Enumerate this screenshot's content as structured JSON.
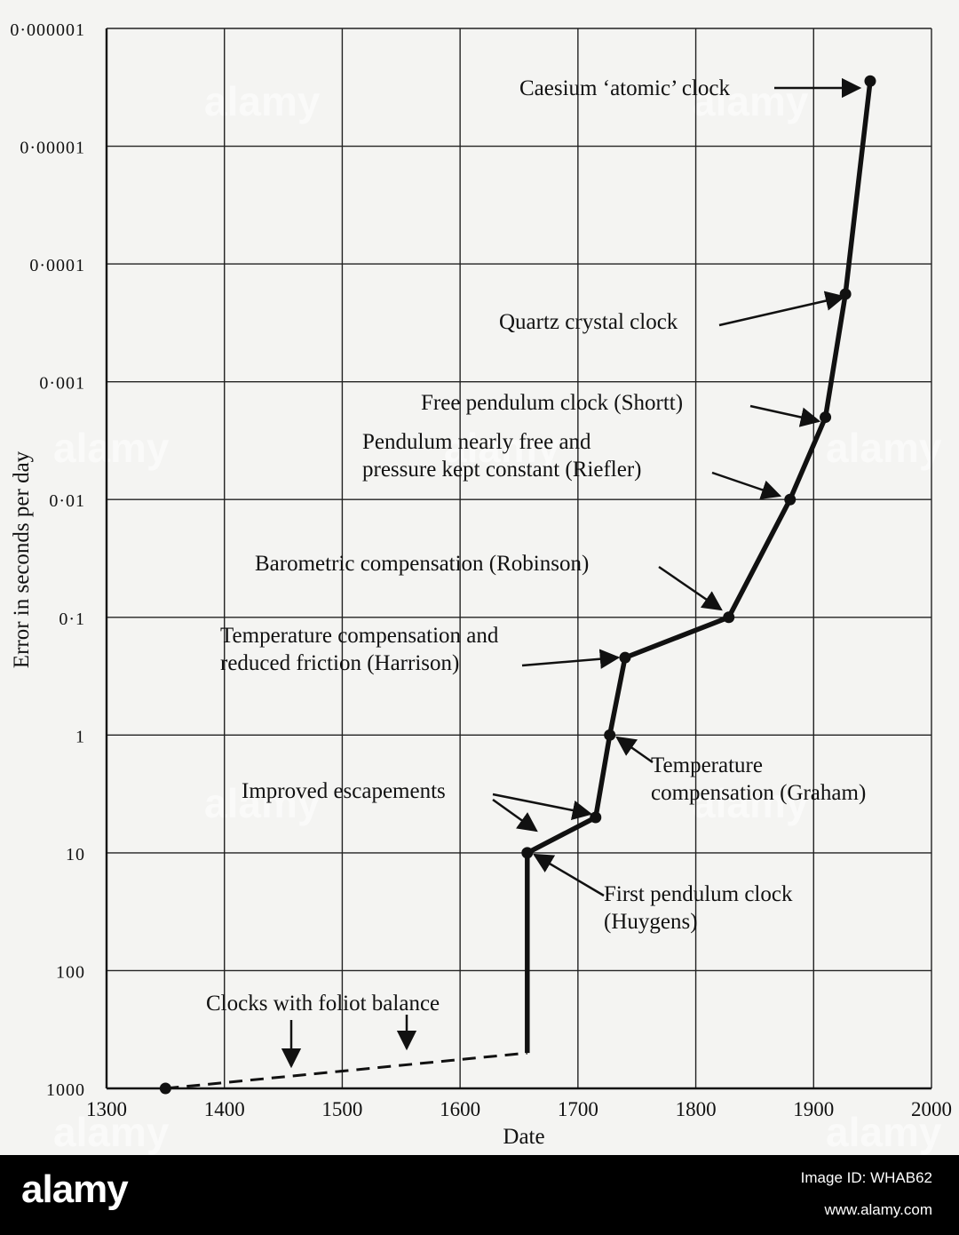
{
  "chart_data": {
    "type": "line",
    "xlabel": "Date",
    "ylabel": "Error in seconds per day",
    "xlim": [
      1300,
      2000
    ],
    "ylim": [
      1000,
      1e-06
    ],
    "y_scale": "log",
    "y_inverted": true,
    "x_ticks": [
      "1300",
      "1400",
      "1500",
      "1600",
      "1700",
      "1800",
      "1900",
      "2000"
    ],
    "y_ticks": [
      {
        "value": 1e-06,
        "label": "0·000001"
      },
      {
        "value": 1e-05,
        "label": "0·00001"
      },
      {
        "value": 0.0001,
        "label": "0·0001"
      },
      {
        "value": 0.001,
        "label": "0·001"
      },
      {
        "value": 0.01,
        "label": "0·01"
      },
      {
        "value": 0.1,
        "label": "0·1"
      },
      {
        "value": 1,
        "label": "1"
      },
      {
        "value": 10,
        "label": "10"
      },
      {
        "value": 100,
        "label": "100"
      },
      {
        "value": 1000,
        "label": "1000"
      }
    ],
    "grid": true,
    "series": [
      {
        "style": "dashed",
        "x": [
          1350,
          1657
        ],
        "y": [
          1000,
          500
        ]
      },
      {
        "style": "solid",
        "x": [
          1657,
          1657,
          1715,
          1727,
          1740,
          1828,
          1880,
          1910,
          1927,
          1948
        ],
        "y": [
          500,
          10,
          5,
          1,
          0.22,
          0.1,
          0.01,
          0.002,
          0.00018,
          2.8e-06
        ]
      }
    ],
    "points": [
      {
        "x": 1350,
        "y": 1000
      },
      {
        "x": 1657,
        "y": 10
      },
      {
        "x": 1715,
        "y": 5
      },
      {
        "x": 1727,
        "y": 1
      },
      {
        "x": 1740,
        "y": 0.22
      },
      {
        "x": 1828,
        "y": 0.1
      },
      {
        "x": 1880,
        "y": 0.01
      },
      {
        "x": 1910,
        "y": 0.002
      },
      {
        "x": 1927,
        "y": 0.00018
      },
      {
        "x": 1948,
        "y": 2.8e-06
      }
    ],
    "annotations": [
      {
        "name": "caesium-atomic-clock",
        "lines": [
          "Caesium ‘atomic’ clock"
        ]
      },
      {
        "name": "quartz-crystal-clock",
        "lines": [
          "Quartz crystal clock"
        ]
      },
      {
        "name": "free-pendulum-clock-shortt",
        "lines": [
          "Free pendulum clock (Shortt)"
        ]
      },
      {
        "name": "riefler",
        "lines": [
          "Pendulum nearly free and",
          "pressure kept constant (Riefler)"
        ]
      },
      {
        "name": "barometric-compensation",
        "lines": [
          "Barometric compensation (Robinson)"
        ]
      },
      {
        "name": "harrison",
        "lines": [
          "Temperature compensation and",
          "reduced friction (Harrison)"
        ]
      },
      {
        "name": "graham",
        "lines": [
          "Temperature",
          "compensation (Graham)"
        ]
      },
      {
        "name": "improved-escapements",
        "lines": [
          "Improved escapements"
        ]
      },
      {
        "name": "first-pendulum-clock",
        "lines": [
          "First pendulum clock",
          "(Huygens)"
        ]
      },
      {
        "name": "foliot-balance",
        "lines": [
          "Clocks with foliot balance"
        ]
      }
    ]
  },
  "watermark": "alamy",
  "footer": {
    "brand": "alamy",
    "image_id": "Image ID: WHAB62",
    "url": "www.alamy.com"
  }
}
